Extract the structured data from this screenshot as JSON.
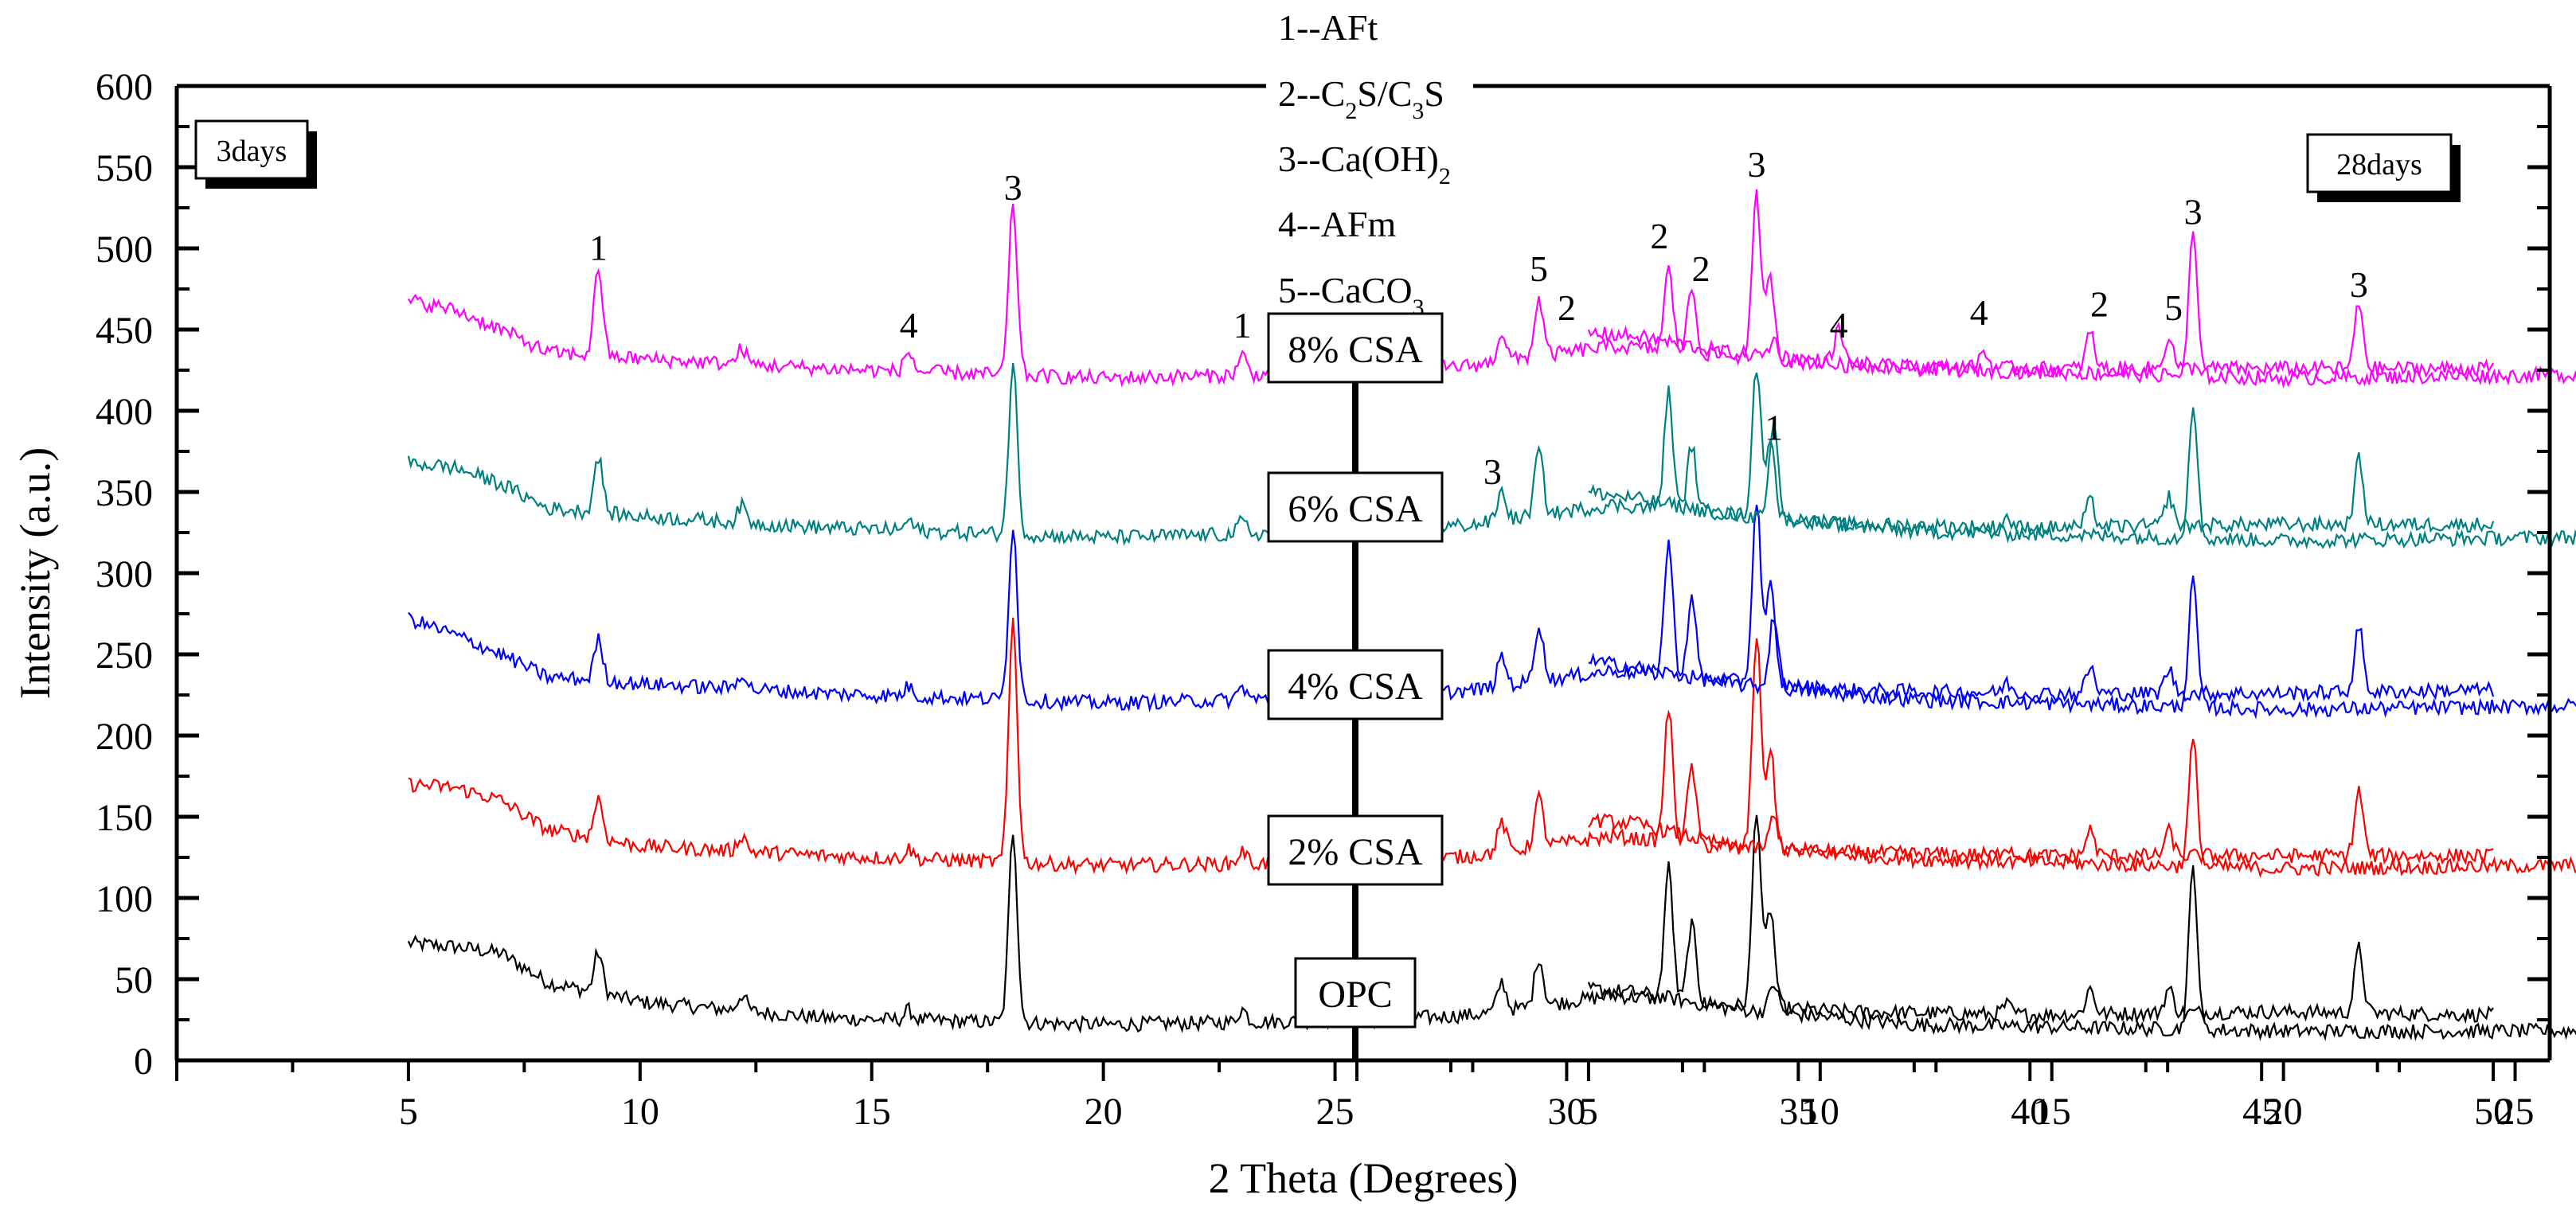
{
  "chart_data": {
    "type": "line",
    "xlabel": "2 Theta (Degrees)",
    "ylabel": "Intensity (a.u.)",
    "ylim": [
      0,
      600
    ],
    "yticks": [
      0,
      50,
      100,
      150,
      200,
      250,
      300,
      350,
      400,
      450,
      500,
      550,
      600
    ],
    "xticks": [
      5,
      10,
      15,
      20,
      25,
      30,
      35,
      40,
      45,
      50
    ],
    "xrange": [
      0,
      55
    ],
    "panels": [
      {
        "id": "3d",
        "label": "3days"
      },
      {
        "id": "28d",
        "label": "28days"
      }
    ],
    "legend": [
      {
        "num": "1",
        "name": "AFt"
      },
      {
        "num": "2",
        "name": "C2S/C3S"
      },
      {
        "num": "3",
        "name": "Ca(OH)2"
      },
      {
        "num": "4",
        "name": "AFm"
      },
      {
        "num": "5",
        "name": "CaCO3"
      }
    ],
    "series": [
      {
        "name": "OPC",
        "color": "#000000",
        "base3": [
          [
            5,
            72
          ],
          [
            6,
            70
          ],
          [
            7,
            66
          ],
          [
            8,
            48
          ],
          [
            10,
            36
          ],
          [
            14,
            26
          ],
          [
            20,
            22
          ],
          [
            26,
            25
          ],
          [
            28,
            28
          ],
          [
            31,
            40
          ],
          [
            33,
            35
          ],
          [
            36,
            30
          ],
          [
            40,
            28
          ],
          [
            45,
            30
          ],
          [
            50,
            28
          ]
        ],
        "peaks3": [
          [
            9.1,
            25
          ],
          [
            12.2,
            10
          ],
          [
            15.8,
            6
          ],
          [
            18.05,
            118
          ],
          [
            23,
            8
          ],
          [
            28.6,
            18
          ],
          [
            29.4,
            30
          ],
          [
            32.2,
            82
          ],
          [
            32.7,
            48
          ],
          [
            34.1,
            122
          ],
          [
            34.4,
            60
          ],
          [
            39.5,
            6
          ],
          [
            41.3,
            16
          ],
          [
            43,
            15
          ],
          [
            47.1,
            40
          ]
        ],
        "base28": [
          [
            5,
            44
          ],
          [
            6,
            42
          ],
          [
            8,
            32
          ],
          [
            12,
            22
          ],
          [
            20,
            18
          ],
          [
            26,
            18
          ],
          [
            30,
            20
          ],
          [
            33,
            26
          ],
          [
            36,
            20
          ],
          [
            45,
            18
          ],
          [
            50,
            20
          ]
        ],
        "peaks28": [
          [
            9,
            18
          ],
          [
            18.05,
            100
          ],
          [
            28.7,
            18
          ],
          [
            29.4,
            14
          ],
          [
            32.2,
            30
          ],
          [
            32.6,
            18
          ],
          [
            34.1,
            82
          ],
          [
            43,
            12
          ],
          [
            47.1,
            26
          ]
        ]
      },
      {
        "name": "2% CSA",
        "color": "#ff0000",
        "base3": [
          [
            5,
            170
          ],
          [
            6,
            168
          ],
          [
            7,
            160
          ],
          [
            8,
            142
          ],
          [
            10,
            132
          ],
          [
            14,
            126
          ],
          [
            20,
            120
          ],
          [
            26,
            122
          ],
          [
            28,
            126
          ],
          [
            31,
            138
          ],
          [
            33,
            132
          ],
          [
            36,
            128
          ],
          [
            40,
            126
          ],
          [
            45,
            126
          ],
          [
            50,
            126
          ]
        ],
        "peaks3": [
          [
            9.1,
            25
          ],
          [
            12.2,
            10
          ],
          [
            15.8,
            6
          ],
          [
            18.05,
            150
          ],
          [
            23,
            8
          ],
          [
            28.6,
            18
          ],
          [
            29.4,
            30
          ],
          [
            32.2,
            82
          ],
          [
            32.7,
            48
          ],
          [
            34.1,
            132
          ],
          [
            34.4,
            60
          ],
          [
            39.5,
            6
          ],
          [
            41.3,
            16
          ],
          [
            43,
            15
          ],
          [
            47.1,
            40
          ]
        ],
        "base28": [
          [
            5,
            148
          ],
          [
            6,
            146
          ],
          [
            8,
            132
          ],
          [
            12,
            124
          ],
          [
            20,
            118
          ],
          [
            26,
            120
          ],
          [
            30,
            122
          ],
          [
            33,
            130
          ],
          [
            36,
            122
          ],
          [
            45,
            118
          ],
          [
            50,
            118
          ]
        ],
        "peaks28": [
          [
            9,
            20
          ],
          [
            18.05,
            78
          ],
          [
            28.7,
            18
          ],
          [
            29.4,
            16
          ],
          [
            32.2,
            30
          ],
          [
            32.6,
            18
          ],
          [
            34.1,
            92
          ],
          [
            43,
            12
          ],
          [
            47.1,
            28
          ]
        ]
      },
      {
        "name": "4% CSA",
        "color": "#0000ff",
        "base3": [
          [
            5,
            272
          ],
          [
            6,
            262
          ],
          [
            7,
            250
          ],
          [
            8,
            236
          ],
          [
            10,
            232
          ],
          [
            14,
            226
          ],
          [
            20,
            220
          ],
          [
            26,
            224
          ],
          [
            28,
            228
          ],
          [
            31,
            240
          ],
          [
            33,
            235
          ],
          [
            36,
            228
          ],
          [
            40,
            226
          ],
          [
            45,
            226
          ],
          [
            50,
            228
          ]
        ],
        "peaks3": [
          [
            9.1,
            25
          ],
          [
            12.2,
            10
          ],
          [
            15.8,
            6
          ],
          [
            18.05,
            108
          ],
          [
            23,
            8
          ],
          [
            28.6,
            18
          ],
          [
            29.4,
            35
          ],
          [
            32.2,
            82
          ],
          [
            32.7,
            48
          ],
          [
            34.1,
            112
          ],
          [
            34.4,
            60
          ],
          [
            39.5,
            6
          ],
          [
            41.3,
            16
          ],
          [
            43,
            15
          ],
          [
            47.1,
            40
          ]
        ],
        "base28": [
          [
            5,
            246
          ],
          [
            6,
            242
          ],
          [
            8,
            232
          ],
          [
            12,
            222
          ],
          [
            20,
            216
          ],
          [
            26,
            218
          ],
          [
            30,
            220
          ],
          [
            33,
            226
          ],
          [
            36,
            220
          ],
          [
            45,
            216
          ],
          [
            50,
            218
          ]
        ],
        "peaks28": [
          [
            9,
            45
          ],
          [
            18.05,
            78
          ],
          [
            28.7,
            18
          ],
          [
            29.4,
            18
          ],
          [
            32.2,
            30
          ],
          [
            32.6,
            18
          ],
          [
            34.1,
            92
          ],
          [
            43,
            12
          ],
          [
            47.1,
            28
          ]
        ]
      },
      {
        "name": "6% CSA",
        "color": "#008080",
        "base3": [
          [
            5,
            368
          ],
          [
            6,
            365
          ],
          [
            7,
            355
          ],
          [
            8,
            340
          ],
          [
            10,
            335
          ],
          [
            14,
            328
          ],
          [
            20,
            322
          ],
          [
            26,
            326
          ],
          [
            28,
            330
          ],
          [
            31,
            342
          ],
          [
            33,
            338
          ],
          [
            36,
            330
          ],
          [
            40,
            328
          ],
          [
            45,
            330
          ],
          [
            50,
            330
          ]
        ],
        "peaks3": [
          [
            9.1,
            35
          ],
          [
            12.2,
            10
          ],
          [
            15.8,
            6
          ],
          [
            18.05,
            105
          ],
          [
            23,
            8
          ],
          [
            28.6,
            18
          ],
          [
            29.4,
            40
          ],
          [
            32.2,
            72
          ],
          [
            32.7,
            40
          ],
          [
            34.1,
            92
          ],
          [
            34.4,
            50
          ],
          [
            39.5,
            6
          ],
          [
            41.3,
            16
          ],
          [
            43,
            18
          ],
          [
            47.1,
            40
          ]
        ],
        "base28": [
          [
            5,
            350
          ],
          [
            6,
            346
          ],
          [
            8,
            336
          ],
          [
            12,
            326
          ],
          [
            20,
            320
          ],
          [
            26,
            322
          ],
          [
            30,
            324
          ],
          [
            33,
            330
          ],
          [
            36,
            322
          ],
          [
            45,
            318
          ],
          [
            50,
            318
          ]
        ],
        "peaks28": [
          [
            9,
            58
          ],
          [
            18.05,
            84
          ],
          [
            28.7,
            26
          ],
          [
            29.4,
            22
          ],
          [
            32.2,
            30
          ],
          [
            32.6,
            28
          ],
          [
            34.1,
            60
          ],
          [
            43,
            10
          ],
          [
            47.1,
            22
          ]
        ]
      },
      {
        "name": "8% CSA",
        "color": "#ff00ff",
        "base3": [
          [
            5,
            468
          ],
          [
            6,
            462
          ],
          [
            7,
            450
          ],
          [
            8,
            436
          ],
          [
            10,
            432
          ],
          [
            14,
            426
          ],
          [
            20,
            420
          ],
          [
            26,
            424
          ],
          [
            28,
            428
          ],
          [
            31,
            440
          ],
          [
            33,
            435
          ],
          [
            36,
            428
          ],
          [
            40,
            426
          ],
          [
            45,
            426
          ],
          [
            50,
            426
          ]
        ],
        "peaks3": [
          [
            9.1,
            55
          ],
          [
            12.2,
            10
          ],
          [
            15.8,
            12
          ],
          [
            18.05,
            105
          ],
          [
            23,
            12
          ],
          [
            28.6,
            18
          ],
          [
            29.4,
            35
          ],
          [
            32.2,
            50
          ],
          [
            32.7,
            40
          ],
          [
            34.1,
            100
          ],
          [
            34.4,
            50
          ],
          [
            39,
            10
          ],
          [
            41.3,
            22
          ],
          [
            43,
            20
          ],
          [
            47.1,
            40
          ]
        ],
        "base28": [
          [
            5,
            448
          ],
          [
            6,
            446
          ],
          [
            8,
            436
          ],
          [
            12,
            426
          ],
          [
            20,
            420
          ],
          [
            26,
            422
          ],
          [
            30,
            424
          ],
          [
            33,
            432
          ],
          [
            36,
            422
          ],
          [
            45,
            418
          ],
          [
            50,
            420
          ]
        ],
        "peaks28": [
          [
            9,
            10
          ],
          [
            10.4,
            20
          ],
          [
            18.05,
            88
          ],
          [
            28.7,
            14
          ],
          [
            29.4,
            10
          ],
          [
            32.2,
            30
          ],
          [
            32.6,
            18
          ],
          [
            34.1,
            80
          ],
          [
            43,
            10
          ],
          [
            47.1,
            28
          ]
        ]
      }
    ],
    "annotations3d": [
      {
        "t": "1",
        "x": 9.1,
        "y": 493
      },
      {
        "t": "4",
        "x": 15.8,
        "y": 445
      },
      {
        "t": "3",
        "x": 18.05,
        "y": 530
      },
      {
        "t": "1",
        "x": 23,
        "y": 445
      },
      {
        "t": "5",
        "x": 29.4,
        "y": 480
      },
      {
        "t": "2",
        "x": 30,
        "y": 456
      },
      {
        "t": "2",
        "x": 32,
        "y": 500
      },
      {
        "t": "2",
        "x": 32.9,
        "y": 480
      },
      {
        "t": "3",
        "x": 34.1,
        "y": 544
      },
      {
        "t": "4",
        "x": 38.9,
        "y": 453
      },
      {
        "t": "2",
        "x": 41.5,
        "y": 458
      },
      {
        "t": "5",
        "x": 43.1,
        "y": 456
      },
      {
        "t": "3",
        "x": 47.1,
        "y": 470
      },
      {
        "t": "3",
        "x": 28.4,
        "y": 355
      }
    ],
    "annotations28d": [
      {
        "t": "4",
        "x": 10.4,
        "y": 445
      },
      {
        "t": "3",
        "x": 18.05,
        "y": 515
      },
      {
        "t": "3",
        "x": 28.4,
        "y": 448
      },
      {
        "t": "2",
        "x": 32.3,
        "y": 460
      },
      {
        "t": "3",
        "x": 34.1,
        "y": 505
      },
      {
        "t": "5",
        "x": 42.8,
        "y": 418
      },
      {
        "t": "3",
        "x": 47.1,
        "y": 452
      },
      {
        "t": "1",
        "x": 9,
        "y": 382
      },
      {
        "t": "5",
        "x": 29.4,
        "y": 358
      }
    ]
  }
}
